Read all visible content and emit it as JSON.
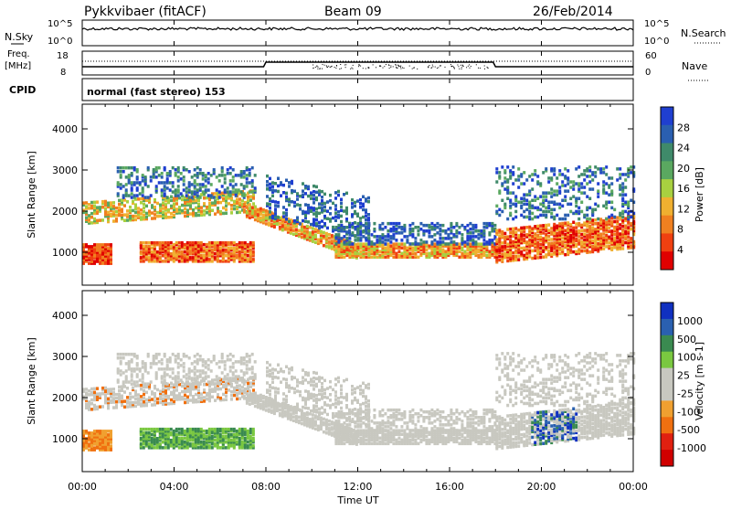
{
  "header": {
    "station": "Pykkvibaer (fitACF)",
    "beam": "Beam 09",
    "date": "26/Feb/2014"
  },
  "top_panels": {
    "nsky_label": "N.Sky",
    "nsearch_label": "N.Search",
    "left_ticks_nsky": [
      "10^5",
      "10^0"
    ],
    "right_ticks_nsky": [
      "10^5",
      "10^0"
    ],
    "freq_label_line1": "Freq.",
    "freq_label_line2": "[MHz]",
    "freq_ticks": [
      "18",
      "8"
    ],
    "nave_label": "Nave",
    "nave_ticks": [
      "60",
      "0"
    ],
    "cpid_label": "CPID",
    "cpid_text": "normal (fast stereo) 153"
  },
  "colors": {
    "power_scale": [
      "#1f3fd0",
      "#2a5fb0",
      "#3f8a6a",
      "#5aa860",
      "#a8d040",
      "#f0b030",
      "#f08020",
      "#f04010",
      "#e00000"
    ],
    "velocity_scale": [
      "#1030c0",
      "#2a60b0",
      "#3a8a50",
      "#7ac840",
      "#c8c8c0",
      "#c8c8c0",
      "#f0a030",
      "#f07010",
      "#e02010",
      "#d00000"
    ]
  },
  "chart_data": [
    {
      "type": "heatmap",
      "title": "",
      "ylabel": "Slant Range [km]",
      "xlabel": "Time UT",
      "x_ticks": [
        "00:00",
        "04:00",
        "08:00",
        "12:00",
        "16:00",
        "20:00",
        "00:00"
      ],
      "y_ticks": [
        "1000",
        "2000",
        "3000",
        "4000"
      ],
      "ylim": [
        200,
        4600
      ],
      "xlim_hours": [
        0,
        24
      ],
      "colorbar_label": "Power [dB]",
      "colorbar_ticks": [
        "28",
        "24",
        "20",
        "16",
        "12",
        "8",
        "4"
      ]
    },
    {
      "type": "heatmap",
      "title": "",
      "ylabel": "Slant Range [km]",
      "xlabel": "Time UT",
      "x_ticks": [
        "00:00",
        "04:00",
        "08:00",
        "12:00",
        "16:00",
        "20:00",
        "00:00"
      ],
      "y_ticks": [
        "1000",
        "2000",
        "3000",
        "4000"
      ],
      "ylim": [
        200,
        4600
      ],
      "xlim_hours": [
        0,
        24
      ],
      "colorbar_label": "Velocity [m s-1]",
      "colorbar_ticks": [
        "1000",
        "500",
        "100",
        "25",
        "-25",
        "-100",
        "-500",
        "-1000"
      ]
    }
  ]
}
